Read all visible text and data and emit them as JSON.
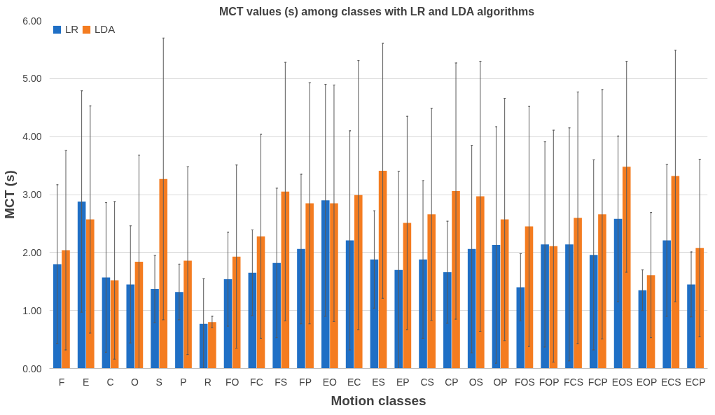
{
  "chart_data": {
    "type": "bar",
    "title": "MCT  values (s) among classes with LR and LDA algorithms",
    "xlabel": "Motion classes",
    "ylabel": "MCT (s)",
    "categories": [
      "F",
      "E",
      "C",
      "O",
      "S",
      "P",
      "R",
      "FO",
      "FC",
      "FS",
      "FP",
      "EO",
      "EC",
      "ES",
      "EP",
      "CS",
      "CP",
      "OS",
      "OP",
      "FOS",
      "FOP",
      "FCS",
      "FCP",
      "EOS",
      "EOP",
      "ECS",
      "ECP"
    ],
    "series": [
      {
        "name": "LR",
        "color": "#1f6fc5",
        "values": [
          1.8,
          2.88,
          1.57,
          1.45,
          1.37,
          1.32,
          0.77,
          1.54,
          1.65,
          1.82,
          2.06,
          2.9,
          2.21,
          1.88,
          1.7,
          1.88,
          1.66,
          2.06,
          2.13,
          1.4,
          2.14,
          2.14,
          1.96,
          2.58,
          1.35,
          2.21,
          1.45
        ],
        "errors": [
          1.37,
          1.91,
          1.29,
          1.01,
          0.58,
          0.48,
          0.78,
          0.81,
          0.74,
          1.29,
          1.29,
          2.0,
          1.89,
          0.84,
          1.7,
          1.36,
          0.88,
          1.79,
          2.04,
          0.58,
          1.77,
          2.01,
          1.64,
          1.43,
          0.35,
          1.31,
          0.56
        ]
      },
      {
        "name": "LDA",
        "color": "#f47c20",
        "values": [
          2.04,
          2.57,
          1.52,
          1.84,
          3.27,
          1.86,
          0.8,
          1.93,
          2.28,
          3.05,
          2.85,
          2.85,
          2.99,
          3.41,
          2.51,
          2.66,
          3.06,
          2.97,
          2.57,
          2.45,
          2.11,
          2.6,
          2.66,
          3.48,
          1.61,
          3.32,
          2.08
        ],
        "errors": [
          1.72,
          1.96,
          1.36,
          1.84,
          2.43,
          1.62,
          0.1,
          1.58,
          1.76,
          2.23,
          2.08,
          2.04,
          2.32,
          2.2,
          1.84,
          1.83,
          2.21,
          2.33,
          2.09,
          2.07,
          2.0,
          2.17,
          2.15,
          1.82,
          1.08,
          2.17,
          1.53
        ]
      }
    ],
    "ylim": [
      0,
      6
    ],
    "yticks": [
      {
        "value": 0,
        "label": "0.00"
      },
      {
        "value": 1,
        "label": "1.00"
      },
      {
        "value": 2,
        "label": "2.00"
      },
      {
        "value": 3,
        "label": "3.00"
      },
      {
        "value": 4,
        "label": "4.00"
      },
      {
        "value": 5,
        "label": "5.00"
      },
      {
        "value": 6,
        "label": "6.00"
      }
    ],
    "grid": "y",
    "legend": "top left"
  }
}
